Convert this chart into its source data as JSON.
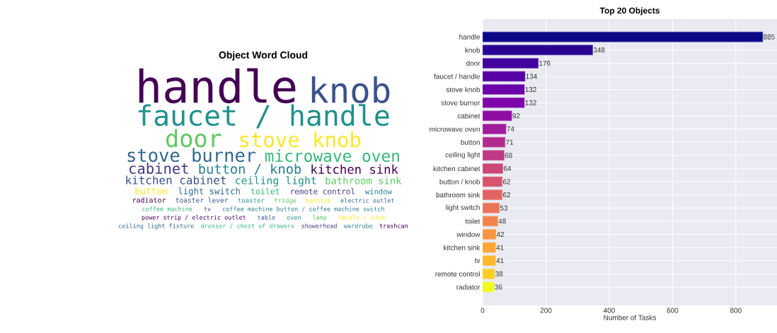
{
  "chart_data": [
    {
      "type": "other",
      "title": "Object Word Cloud",
      "annotations": [
        "handle",
        "knob",
        "faucet / handle",
        "door",
        "stove knob",
        "stove burner",
        "microwave oven",
        "cabinet",
        "button / knob",
        "kitchen sink",
        "kitchen cabinet",
        "ceiling light",
        "bathroom sink",
        "button",
        "light switch",
        "toilet",
        "remote control",
        "window",
        "radiator",
        "toaster lever",
        "toaster",
        "fridge",
        "bathtub",
        "electric outlet",
        "coffee machine",
        "tv",
        "coffee machine button / coffee machine switch",
        "power strip / electric outlet",
        "table",
        "oven",
        "lamp",
        "handle / knob",
        "ceiling light fixture",
        "dresser / chest of drawers",
        "showerhead",
        "wardrobe",
        "trashcan"
      ]
    },
    {
      "type": "bar",
      "orientation": "horizontal",
      "title": "Top 20 Objects",
      "xlabel": "Number of Tasks",
      "categories": [
        "handle",
        "knob",
        "door",
        "faucet / handle",
        "stove knob",
        "stove burner",
        "cabinet",
        "microwave oven",
        "button",
        "ceiling light",
        "kitchen cabinet",
        "button / knob",
        "bathroom sink",
        "light switch",
        "toilet",
        "window",
        "kitchen sink",
        "tv",
        "remote control",
        "radiator"
      ],
      "values": [
        885,
        348,
        176,
        134,
        132,
        132,
        92,
        74,
        71,
        68,
        64,
        62,
        62,
        53,
        48,
        42,
        41,
        41,
        38,
        36
      ],
      "colors": [
        "#0d0887",
        "#2a0593",
        "#41049d",
        "#5602a4",
        "#6a00a8",
        "#7e03a8",
        "#8f0da4",
        "#a11b9b",
        "#b12a90",
        "#bf3984",
        "#cc4778",
        "#d6556d",
        "#e16462",
        "#ea7457",
        "#f2844b",
        "#f89540",
        "#fca636",
        "#feb82c",
        "#fccd25",
        "#f0f921"
      ],
      "xlim": [
        0,
        930
      ],
      "xticks": [
        0,
        200,
        400,
        600,
        800
      ],
      "grid": true,
      "data_labels": true
    }
  ]
}
